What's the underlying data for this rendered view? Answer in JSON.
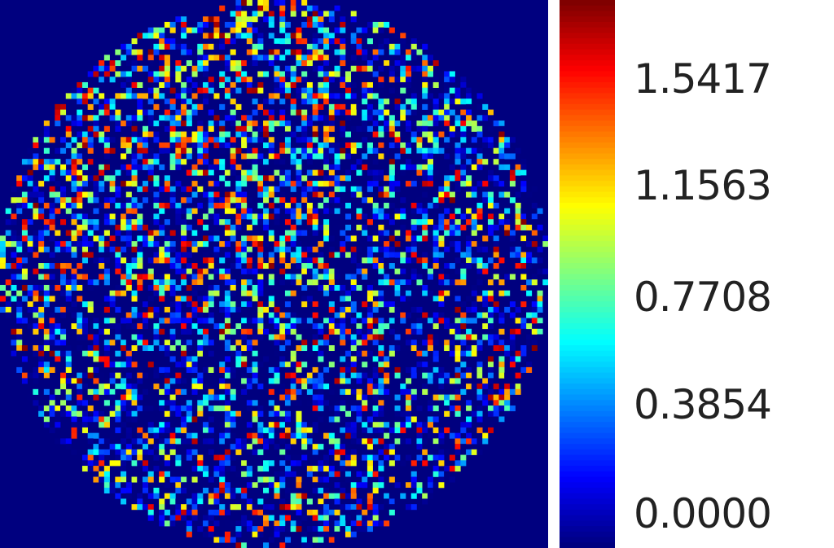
{
  "chart_data": {
    "type": "heatmap",
    "colormap": "jet",
    "mask": "circle",
    "background_color": "#00007f",
    "color_range": [
      0.0,
      1.5417
    ],
    "colorbar": {
      "position": "right",
      "ticks": [
        "1.5417",
        "1.1563",
        "0.7708",
        "0.3854",
        "0.0000"
      ]
    }
  }
}
